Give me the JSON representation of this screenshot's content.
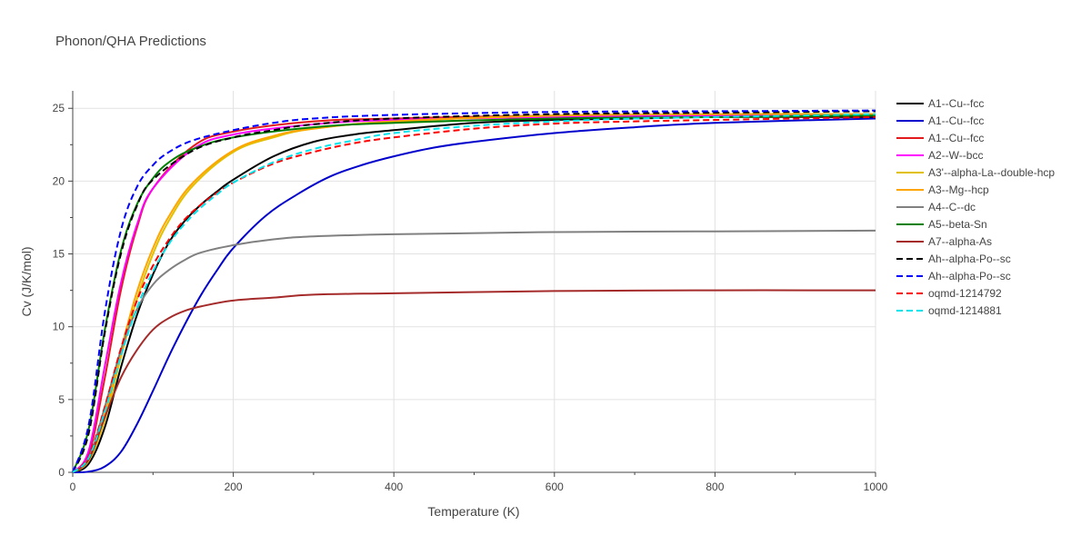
{
  "chart_data": {
    "type": "line",
    "title": "Phonon/QHA Predictions",
    "xlabel": "Temperature (K)",
    "ylabel": "Cv (J/K/mol)",
    "xlim": [
      0,
      1000
    ],
    "ylim": [
      0,
      26.2
    ],
    "xticks": [
      0,
      200,
      400,
      600,
      800,
      1000
    ],
    "yticks": [
      0,
      5,
      10,
      15,
      20,
      25
    ],
    "grid": true,
    "legend_position": "right",
    "series": [
      {
        "name": "A1--Cu--fcc",
        "color": "#000000",
        "dash": "solid",
        "x": [
          0,
          20,
          40,
          60,
          80,
          100,
          120,
          140,
          160,
          180,
          200,
          250,
          300,
          350,
          400,
          500,
          600,
          700,
          800,
          1000
        ],
        "y": [
          0,
          0.6,
          3.1,
          7.2,
          10.8,
          13.6,
          15.8,
          17.3,
          18.4,
          19.3,
          20.1,
          21.7,
          22.7,
          23.2,
          23.5,
          24.0,
          24.2,
          24.3,
          24.4,
          24.4
        ]
      },
      {
        "name": "A1--Cu--fcc",
        "color": "#0000cc",
        "dash": "solid",
        "x": [
          0,
          20,
          40,
          60,
          80,
          100,
          120,
          140,
          160,
          180,
          200,
          240,
          280,
          320,
          360,
          400,
          450,
          500,
          600,
          700,
          800,
          1000
        ],
        "y": [
          0,
          0.05,
          0.4,
          1.4,
          3.3,
          5.6,
          8.0,
          10.2,
          12.2,
          13.9,
          15.4,
          17.6,
          19.1,
          20.3,
          21.1,
          21.7,
          22.3,
          22.7,
          23.3,
          23.7,
          24.0,
          24.3
        ]
      },
      {
        "name": "A1--Cu--fcc",
        "color": "#e31a1c",
        "dash": "solid",
        "x": [
          0,
          20,
          40,
          60,
          80,
          100,
          150,
          200,
          300,
          400,
          600,
          800,
          1000
        ],
        "y": [
          0,
          1.2,
          6.5,
          12.5,
          16.8,
          19.5,
          22.4,
          23.4,
          24.1,
          24.3,
          24.5,
          24.5,
          24.5
        ]
      },
      {
        "name": "A2--W--bcc",
        "color": "#ff00ff",
        "dash": "solid",
        "x": [
          0,
          20,
          40,
          60,
          80,
          100,
          150,
          200,
          300,
          400,
          600,
          800,
          1000
        ],
        "y": [
          0,
          1.5,
          7.3,
          13.0,
          17.0,
          19.5,
          22.2,
          23.2,
          23.9,
          24.2,
          24.4,
          24.5,
          24.5
        ]
      },
      {
        "name": "A3'--alpha-La--double-hcp",
        "color": "#e0c000",
        "dash": "solid",
        "x": [
          0,
          20,
          40,
          60,
          80,
          100,
          120,
          150,
          200,
          250,
          300,
          400,
          600,
          800,
          1000
        ],
        "y": [
          0,
          0.8,
          3.6,
          7.9,
          11.9,
          15.0,
          17.3,
          19.7,
          22.0,
          23.0,
          23.6,
          24.1,
          24.5,
          24.6,
          24.6
        ]
      },
      {
        "name": "A3--Mg--hcp",
        "color": "#ffa500",
        "dash": "solid",
        "x": [
          0,
          20,
          40,
          60,
          80,
          100,
          120,
          150,
          200,
          250,
          300,
          400,
          600,
          800,
          1000
        ],
        "y": [
          0,
          0.9,
          4.0,
          8.4,
          12.4,
          15.4,
          17.6,
          19.9,
          22.1,
          23.1,
          23.6,
          24.1,
          24.5,
          24.6,
          24.6
        ]
      },
      {
        "name": "A4--C--dc",
        "color": "#808080",
        "dash": "solid",
        "x": [
          0,
          20,
          40,
          60,
          80,
          100,
          120,
          140,
          160,
          200,
          250,
          300,
          400,
          600,
          800,
          1000
        ],
        "y": [
          0,
          1.0,
          4.5,
          8.4,
          11.2,
          12.9,
          13.9,
          14.6,
          15.1,
          15.6,
          16.0,
          16.2,
          16.35,
          16.5,
          16.55,
          16.6
        ]
      },
      {
        "name": "A5--beta-Sn",
        "color": "#008000",
        "dash": "solid",
        "x": [
          0,
          20,
          40,
          60,
          80,
          100,
          120,
          150,
          200,
          300,
          400,
          600,
          800,
          1000
        ],
        "y": [
          0,
          3.0,
          9.8,
          15.2,
          18.4,
          20.2,
          21.3,
          22.2,
          23.0,
          23.7,
          24.0,
          24.3,
          24.4,
          24.5
        ]
      },
      {
        "name": "A7--alpha-As",
        "color": "#a52a2a",
        "dash": "solid",
        "x": [
          0,
          20,
          40,
          60,
          80,
          100,
          120,
          140,
          160,
          200,
          250,
          300,
          400,
          600,
          800,
          1000
        ],
        "y": [
          0,
          0.9,
          3.8,
          6.5,
          8.4,
          9.8,
          10.6,
          11.1,
          11.4,
          11.8,
          12.0,
          12.2,
          12.3,
          12.45,
          12.5,
          12.5
        ]
      },
      {
        "name": "Ah--alpha-Po--sc",
        "color": "#000000",
        "dash": "dash",
        "x": [
          0,
          20,
          40,
          60,
          80,
          100,
          150,
          200,
          250,
          300,
          400,
          600,
          800,
          1000
        ],
        "y": [
          0,
          2.7,
          9.6,
          15.0,
          18.3,
          20.1,
          22.1,
          23.0,
          23.5,
          23.9,
          24.3,
          24.6,
          24.7,
          24.8
        ]
      },
      {
        "name": "Ah--alpha-Po--sc",
        "color": "#0000ff",
        "dash": "dash",
        "x": [
          0,
          20,
          40,
          60,
          80,
          100,
          120,
          150,
          200,
          250,
          300,
          400,
          600,
          800,
          1000
        ],
        "y": [
          0,
          3.3,
          11.0,
          16.6,
          19.6,
          21.1,
          22.0,
          22.8,
          23.5,
          24.0,
          24.3,
          24.55,
          24.75,
          24.8,
          24.85
        ]
      },
      {
        "name": "oqmd-1214792",
        "color": "#ff0000",
        "dash": "dash",
        "x": [
          0,
          20,
          40,
          60,
          80,
          100,
          120,
          140,
          160,
          180,
          200,
          250,
          300,
          350,
          400,
          500,
          600,
          700,
          800,
          1000
        ],
        "y": [
          0,
          1.1,
          4.5,
          8.5,
          11.8,
          14.2,
          16.0,
          17.4,
          18.4,
          19.2,
          19.9,
          21.2,
          22.0,
          22.6,
          23.0,
          23.6,
          23.95,
          24.1,
          24.2,
          24.4
        ]
      },
      {
        "name": "oqmd-1214881",
        "color": "#00e5ee",
        "dash": "dash",
        "x": [
          0,
          20,
          40,
          60,
          80,
          100,
          120,
          140,
          160,
          180,
          200,
          250,
          300,
          350,
          400,
          500,
          600,
          700,
          800,
          1000
        ],
        "y": [
          0,
          1.0,
          4.2,
          8.0,
          11.3,
          13.8,
          15.7,
          17.1,
          18.2,
          19.1,
          19.9,
          21.3,
          22.2,
          22.8,
          23.3,
          23.8,
          24.1,
          24.3,
          24.4,
          24.6
        ]
      }
    ]
  }
}
